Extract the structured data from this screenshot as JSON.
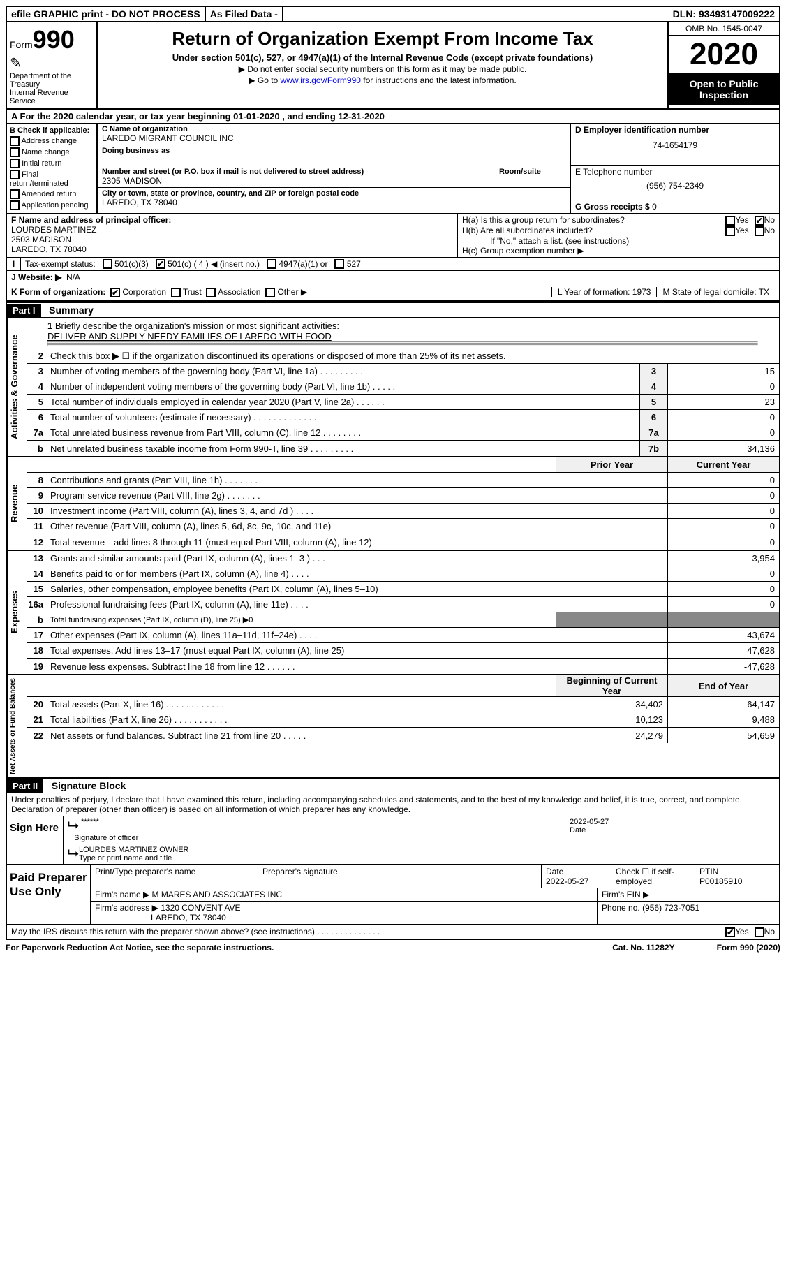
{
  "topbar": {
    "efile": "efile GRAPHIC print - DO NOT PROCESS",
    "asfiled": "As Filed Data -",
    "dln_label": "DLN:",
    "dln": "93493147009222"
  },
  "header": {
    "form_prefix": "Form",
    "form_num": "990",
    "dept1": "Department of the Treasury",
    "dept2": "Internal Revenue Service",
    "title": "Return of Organization Exempt From Income Tax",
    "sub": "Under section 501(c), 527, or 4947(a)(1) of the Internal Revenue Code (except private foundations)",
    "note1": "▶ Do not enter social security numbers on this form as it may be made public.",
    "note2_pre": "▶ Go to ",
    "note2_link": "www.irs.gov/Form990",
    "note2_post": " for instructions and the latest information.",
    "omb": "OMB No. 1545-0047",
    "year": "2020",
    "inspect": "Open to Public Inspection"
  },
  "row_a": "A   For the 2020 calendar year, or tax year beginning 01-01-2020   , and ending 12-31-2020",
  "b": {
    "title": "B Check if applicable:",
    "items": [
      "Address change",
      "Name change",
      "Initial return",
      "Final return/terminated",
      "Amended return",
      "Application pending"
    ]
  },
  "c": {
    "name_label": "C Name of organization",
    "name": "LAREDO MIGRANT COUNCIL INC",
    "dba_label": "Doing business as",
    "dba": "",
    "addr_label": "Number and street (or P.O. box if mail is not delivered to street address)",
    "room_label": "Room/suite",
    "addr": "2305 MADISON",
    "city_label": "City or town, state or province, country, and ZIP or foreign postal code",
    "city": "LAREDO, TX  78040"
  },
  "d": {
    "ein_label": "D Employer identification number",
    "ein": "74-1654179",
    "tel_label": "E Telephone number",
    "tel": "(956) 754-2349",
    "gross_label": "G Gross receipts $",
    "gross": "0"
  },
  "f": {
    "label": "F  Name and address of principal officer:",
    "name": "LOURDES MARTINEZ",
    "addr1": "2503 MADISON",
    "addr2": "LAREDO, TX  78040"
  },
  "h": {
    "a": "H(a)  Is this a group return for subordinates?",
    "b": "H(b)  Are all subordinates included?",
    "b_note": "If \"No,\" attach a list. (see instructions)",
    "c": "H(c)  Group exemption number ▶",
    "yes": "Yes",
    "no": "No"
  },
  "i": {
    "label": "Tax-exempt status:",
    "opts": [
      "501(c)(3)",
      "501(c) ( 4 ) ◀ (insert no.)",
      "4947(a)(1) or",
      "527"
    ]
  },
  "j": {
    "label": "J   Website: ▶",
    "val": "N/A"
  },
  "k": {
    "label": "K Form of organization:",
    "opts": [
      "Corporation",
      "Trust",
      "Association",
      "Other ▶"
    ],
    "l": "L Year of formation: 1973",
    "m": "M State of legal domicile: TX"
  },
  "part1": {
    "hdr": "Part I",
    "title": "Summary"
  },
  "mission": {
    "num": "1",
    "label": "Briefly describe the organization's mission or most significant activities:",
    "text": "DELIVER AND SUPPLY NEEDY FAMILIES OF LAREDO WITH FOOD"
  },
  "line2": "Check this box ▶ ☐ if the organization discontinued its operations or disposed of more than 25% of its net assets.",
  "ag_lines": [
    {
      "num": "3",
      "desc": "Number of voting members of the governing body (Part VI, line 1a)  .   .   .   .   .   .   .   .   .",
      "box": "3",
      "val": "15"
    },
    {
      "num": "4",
      "desc": "Number of independent voting members of the governing body (Part VI, line 1b)  .   .   .   .   .",
      "box": "4",
      "val": "0"
    },
    {
      "num": "5",
      "desc": "Total number of individuals employed in calendar year 2020 (Part V, line 2a)  .   .   .   .   .   .",
      "box": "5",
      "val": "23"
    },
    {
      "num": "6",
      "desc": "Total number of volunteers (estimate if necessary)  .   .   .   .   .   .   .   .   .   .   .   .   .",
      "box": "6",
      "val": "0"
    },
    {
      "num": "7a",
      "desc": "Total unrelated business revenue from Part VIII, column (C), line 12  .   .   .   .   .   .   .   .",
      "box": "7a",
      "val": "0"
    },
    {
      "num": "b",
      "desc": "Net unrelated business taxable income from Form 990-T, line 39  .   .   .   .   .   .   .   .   .",
      "box": "7b",
      "val": "34,136"
    }
  ],
  "cols": {
    "prior": "Prior Year",
    "current": "Current Year"
  },
  "rev_lines": [
    {
      "num": "8",
      "desc": "Contributions and grants (Part VIII, line 1h)  .   .   .   .   .   .   .",
      "p": "",
      "c": "0"
    },
    {
      "num": "9",
      "desc": "Program service revenue (Part VIII, line 2g)  .   .   .   .   .   .   .",
      "p": "",
      "c": "0"
    },
    {
      "num": "10",
      "desc": "Investment income (Part VIII, column (A), lines 3, 4, and 7d )  .   .   .   .",
      "p": "",
      "c": "0"
    },
    {
      "num": "11",
      "desc": "Other revenue (Part VIII, column (A), lines 5, 6d, 8c, 9c, 10c, and 11e)",
      "p": "",
      "c": "0"
    },
    {
      "num": "12",
      "desc": "Total revenue—add lines 8 through 11 (must equal Part VIII, column (A), line 12)",
      "p": "",
      "c": "0"
    }
  ],
  "exp_lines": [
    {
      "num": "13",
      "desc": "Grants and similar amounts paid (Part IX, column (A), lines 1–3 )  .   .   .",
      "p": "",
      "c": "3,954"
    },
    {
      "num": "14",
      "desc": "Benefits paid to or for members (Part IX, column (A), line 4)  .   .   .   .",
      "p": "",
      "c": "0"
    },
    {
      "num": "15",
      "desc": "Salaries, other compensation, employee benefits (Part IX, column (A), lines 5–10)",
      "p": "",
      "c": "0"
    },
    {
      "num": "16a",
      "desc": "Professional fundraising fees (Part IX, column (A), line 11e)  .   .   .   .",
      "p": "",
      "c": "0"
    },
    {
      "num": "b",
      "desc": "Total fundraising expenses (Part IX, column (D), line 25) ▶0",
      "p": null,
      "c": null
    },
    {
      "num": "17",
      "desc": "Other expenses (Part IX, column (A), lines 11a–11d, 11f–24e)  .   .   .   .",
      "p": "",
      "c": "43,674"
    },
    {
      "num": "18",
      "desc": "Total expenses. Add lines 13–17 (must equal Part IX, column (A), line 25)",
      "p": "",
      "c": "47,628"
    },
    {
      "num": "19",
      "desc": "Revenue less expenses. Subtract line 18 from line 12  .   .   .   .   .   .",
      "p": "",
      "c": "-47,628"
    }
  ],
  "na_cols": {
    "begin": "Beginning of Current Year",
    "end": "End of Year"
  },
  "na_lines": [
    {
      "num": "20",
      "desc": "Total assets (Part X, line 16)  .   .   .   .   .   .   .   .   .   .   .   .",
      "p": "34,402",
      "c": "64,147"
    },
    {
      "num": "21",
      "desc": "Total liabilities (Part X, line 26)  .   .   .   .   .   .   .   .   .   .   .",
      "p": "10,123",
      "c": "9,488"
    },
    {
      "num": "22",
      "desc": "Net assets or fund balances. Subtract line 21 from line 20  .   .   .   .   .",
      "p": "24,279",
      "c": "54,659"
    }
  ],
  "sidelabels": {
    "ag": "Activities & Governance",
    "rev": "Revenue",
    "exp": "Expenses",
    "na": "Net Assets or Fund Balances"
  },
  "part2": {
    "hdr": "Part II",
    "title": "Signature Block"
  },
  "perjury": "Under penalties of perjury, I declare that I have examined this return, including accompanying schedules and statements, and to the best of my knowledge and belief, it is true, correct, and complete. Declaration of preparer (other than officer) is based on all information of which preparer has any knowledge.",
  "sign": {
    "left": "Sign Here",
    "stars": "******",
    "sig_label": "Signature of officer",
    "date_label": "Date",
    "date": "2022-05-27",
    "name": "LOURDES MARTINEZ  OWNER",
    "name_label": "Type or print name and title"
  },
  "paid": {
    "left": "Paid Preparer Use Only",
    "h1": "Print/Type preparer's name",
    "h2": "Preparer's signature",
    "h3": "Date",
    "h3v": "2022-05-27",
    "h4": "Check ☐ if self-employed",
    "h5": "PTIN",
    "h5v": "P00185910",
    "firm_label": "Firm's name    ▶",
    "firm": "M MARES AND ASSOCIATES INC",
    "ein_label": "Firm's EIN ▶",
    "addr_label": "Firm's address ▶",
    "addr1": "1320 CONVENT AVE",
    "addr2": "LAREDO, TX  78040",
    "phone_label": "Phone no.",
    "phone": "(956) 723-7051"
  },
  "discuss": "May the IRS discuss this return with the preparer shown above? (see instructions)  .   .   .   .   .   .   .   .   .   .   .   .   .   .",
  "footer": {
    "pra": "For Paperwork Reduction Act Notice, see the separate instructions.",
    "cat": "Cat. No. 11282Y",
    "form": "Form 990 (2020)"
  }
}
